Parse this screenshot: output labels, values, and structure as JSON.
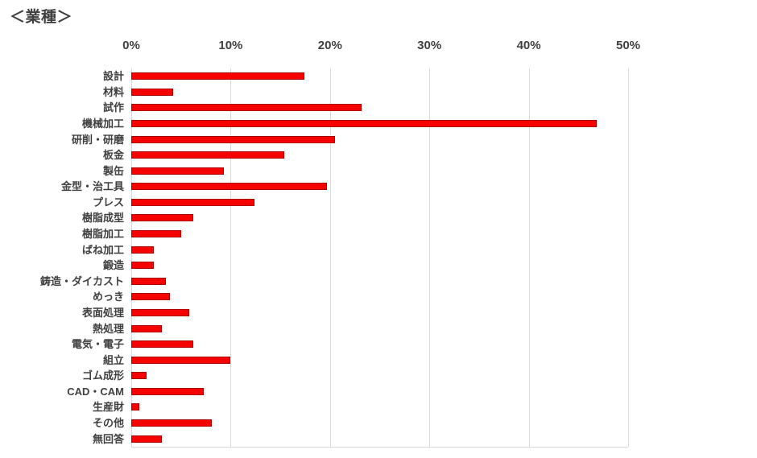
{
  "title": "＜業種＞",
  "chart_data": {
    "type": "bar",
    "orientation": "horizontal",
    "title": "＜業種＞",
    "categories": [
      "設計",
      "材料",
      "試作",
      "機械加工",
      "研削・研磨",
      "板金",
      "製缶",
      "金型・治工具",
      "プレス",
      "樹脂成型",
      "樹脂加工",
      "ばね加工",
      "鍛造",
      "鋳造・ダイカスト",
      "めっき",
      "表面処理",
      "熱処理",
      "電気・電子",
      "組立",
      "ゴム成形",
      "CAD・CAM",
      "生産財",
      "その他",
      "無回答"
    ],
    "values": [
      17.4,
      4.2,
      23.2,
      46.8,
      20.5,
      15.4,
      9.3,
      19.7,
      12.4,
      6.2,
      5.0,
      2.3,
      2.3,
      3.5,
      3.9,
      5.8,
      3.1,
      6.2,
      10.0,
      1.5,
      7.3,
      0.8,
      8.1,
      3.1
    ],
    "unit": "%",
    "x_ticks": [
      "0%",
      "10%",
      "20%",
      "30%",
      "40%",
      "50%"
    ],
    "xlim": [
      0,
      50
    ],
    "grid": true,
    "legend": false,
    "bar_color": "#f40100",
    "bar_border_color": "#ae0000",
    "grid_color": "#d9d9d9",
    "label_color": "#404040",
    "background": "#ffffff"
  }
}
